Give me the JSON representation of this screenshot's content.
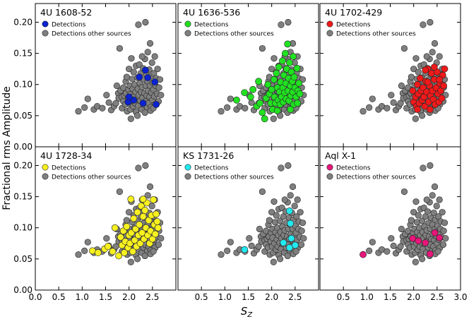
{
  "figure": {
    "ylabel": "Fractional rms Amplitude",
    "xlabel": "S",
    "xlabel_sub": "Z"
  },
  "legend": {
    "detections_label": "Detections",
    "others_label": "Detections other sources"
  },
  "colors": {
    "others": "#7f7f7f",
    "edge": "#222222"
  },
  "chart_data": {
    "type": "scatter",
    "layout": "2x3 grid, shared axes",
    "xlim": [
      0.0,
      3.0
    ],
    "ylim": [
      0.0,
      0.23
    ],
    "x_ticks": [
      "0.0",
      "0.5",
      "1.0",
      "1.5",
      "2.0",
      "2.5",
      "3.0"
    ],
    "x_tick_values": [
      0.0,
      0.5,
      1.0,
      1.5,
      2.0,
      2.5,
      3.0
    ],
    "y_ticks": [
      "0.00",
      "0.05",
      "0.10",
      "0.15",
      "0.20"
    ],
    "y_tick_values": [
      0.0,
      0.05,
      0.1,
      0.15,
      0.2
    ],
    "legend_position": "upper-left",
    "others_points": [
      [
        0.92,
        0.057
      ],
      [
        1.05,
        0.063
      ],
      [
        1.12,
        0.077
      ],
      [
        1.25,
        0.06
      ],
      [
        1.32,
        0.065
      ],
      [
        1.43,
        0.062
      ],
      [
        1.52,
        0.083
      ],
      [
        1.57,
        0.071
      ],
      [
        1.62,
        0.059
      ],
      [
        1.68,
        0.065
      ],
      [
        1.72,
        0.07
      ],
      [
        1.77,
        0.086
      ],
      [
        1.78,
        0.078
      ],
      [
        1.8,
        0.158
      ],
      [
        1.82,
        0.09
      ],
      [
        1.85,
        0.08
      ],
      [
        1.85,
        0.062
      ],
      [
        1.88,
        0.095
      ],
      [
        1.88,
        0.073
      ],
      [
        1.9,
        0.082
      ],
      [
        1.92,
        0.068
      ],
      [
        1.93,
        0.105
      ],
      [
        1.94,
        0.086
      ],
      [
        1.96,
        0.057
      ],
      [
        1.98,
        0.078
      ],
      [
        1.99,
        0.092
      ],
      [
        2.0,
        0.125
      ],
      [
        2.01,
        0.07
      ],
      [
        2.02,
        0.098
      ],
      [
        2.02,
        0.084
      ],
      [
        2.03,
        0.06
      ],
      [
        2.05,
        0.142
      ],
      [
        2.06,
        0.075
      ],
      [
        2.07,
        0.109
      ],
      [
        2.08,
        0.093
      ],
      [
        2.09,
        0.065
      ],
      [
        2.1,
        0.12
      ],
      [
        2.11,
        0.081
      ],
      [
        2.12,
        0.1
      ],
      [
        2.13,
        0.07
      ],
      [
        2.14,
        0.088
      ],
      [
        2.15,
        0.13
      ],
      [
        2.15,
        0.056
      ],
      [
        2.17,
        0.076
      ],
      [
        2.18,
        0.111
      ],
      [
        2.19,
        0.093
      ],
      [
        2.2,
        0.196
      ],
      [
        2.2,
        0.066
      ],
      [
        2.21,
        0.083
      ],
      [
        2.22,
        0.132
      ],
      [
        2.23,
        0.102
      ],
      [
        2.24,
        0.074
      ],
      [
        2.25,
        0.118
      ],
      [
        2.26,
        0.088
      ],
      [
        2.27,
        0.06
      ],
      [
        2.28,
        0.096
      ],
      [
        2.29,
        0.079
      ],
      [
        2.3,
        0.126
      ],
      [
        2.31,
        0.068
      ],
      [
        2.32,
        0.108
      ],
      [
        2.33,
        0.086
      ],
      [
        2.34,
        0.141
      ],
      [
        2.35,
        0.2
      ],
      [
        2.35,
        0.073
      ],
      [
        2.36,
        0.098
      ],
      [
        2.37,
        0.116
      ],
      [
        2.38,
        0.082
      ],
      [
        2.39,
        0.063
      ],
      [
        2.4,
        0.152
      ],
      [
        2.4,
        0.105
      ],
      [
        2.41,
        0.09
      ],
      [
        2.42,
        0.07
      ],
      [
        2.43,
        0.124
      ],
      [
        2.44,
        0.08
      ],
      [
        2.45,
        0.166
      ],
      [
        2.45,
        0.098
      ],
      [
        2.46,
        0.113
      ],
      [
        2.47,
        0.064
      ],
      [
        2.48,
        0.087
      ],
      [
        2.49,
        0.135
      ],
      [
        2.5,
        0.075
      ],
      [
        2.51,
        0.103
      ],
      [
        2.52,
        0.092
      ],
      [
        2.53,
        0.118
      ],
      [
        2.54,
        0.081
      ],
      [
        2.55,
        0.145
      ],
      [
        2.56,
        0.068
      ],
      [
        2.57,
        0.098
      ],
      [
        2.58,
        0.11
      ],
      [
        2.6,
        0.085
      ],
      [
        2.61,
        0.125
      ],
      [
        2.63,
        0.073
      ],
      [
        2.64,
        0.095
      ],
      [
        2.66,
        0.108
      ],
      [
        2.68,
        0.083
      ],
      [
        2.04,
        0.045
      ],
      [
        2.18,
        0.05
      ],
      [
        2.34,
        0.055
      ],
      [
        2.46,
        0.058
      ],
      [
        1.95,
        0.112
      ],
      [
        2.28,
        0.145
      ],
      [
        2.52,
        0.062
      ],
      [
        1.74,
        0.098
      ]
    ],
    "panels": [
      {
        "name": "4U 1608-52",
        "color": "#0a22d0",
        "points": [
          [
            2.22,
            0.112
          ],
          [
            2.35,
            0.123
          ],
          [
            2.4,
            0.111
          ],
          [
            2.55,
            0.104
          ],
          [
            2.1,
            0.075
          ],
          [
            2.3,
            0.07
          ],
          [
            1.98,
            0.072
          ],
          [
            2.58,
            0.068
          ],
          [
            2.0,
            0.08
          ]
        ]
      },
      {
        "name": "4U 1636-536",
        "color": "#22e022",
        "points": [
          [
            1.42,
            0.087
          ],
          [
            1.55,
            0.08
          ],
          [
            1.68,
            0.065
          ],
          [
            1.75,
            0.07
          ],
          [
            1.8,
            0.055
          ],
          [
            1.85,
            0.045
          ],
          [
            1.88,
            0.078
          ],
          [
            1.92,
            0.1
          ],
          [
            1.95,
            0.085
          ],
          [
            1.98,
            0.07
          ],
          [
            2.0,
            0.092
          ],
          [
            2.02,
            0.06
          ],
          [
            2.05,
            0.108
          ],
          [
            2.06,
            0.08
          ],
          [
            2.08,
            0.07
          ],
          [
            2.1,
            0.118
          ],
          [
            2.12,
            0.095
          ],
          [
            2.14,
            0.075
          ],
          [
            2.15,
            0.128
          ],
          [
            2.17,
            0.088
          ],
          [
            2.18,
            0.068
          ],
          [
            2.19,
            0.104
          ],
          [
            2.21,
            0.08
          ],
          [
            2.23,
            0.138
          ],
          [
            2.24,
            0.095
          ],
          [
            2.25,
            0.072
          ],
          [
            2.26,
            0.115
          ],
          [
            2.28,
            0.087
          ],
          [
            2.29,
            0.15
          ],
          [
            2.3,
            0.102
          ],
          [
            2.31,
            0.077
          ],
          [
            2.32,
            0.125
          ],
          [
            2.34,
            0.165
          ],
          [
            2.35,
            0.09
          ],
          [
            2.36,
            0.11
          ],
          [
            2.37,
            0.074
          ],
          [
            2.38,
            0.135
          ],
          [
            2.4,
            0.098
          ],
          [
            2.41,
            0.082
          ],
          [
            2.42,
            0.12
          ],
          [
            2.44,
            0.105
          ],
          [
            2.45,
            0.088
          ],
          [
            2.46,
            0.145
          ],
          [
            2.47,
            0.068
          ],
          [
            2.48,
            0.112
          ],
          [
            2.5,
            0.095
          ],
          [
            2.52,
            0.08
          ],
          [
            2.54,
            0.126
          ],
          [
            2.56,
            0.09
          ],
          [
            2.58,
            0.102
          ],
          [
            2.6,
            0.085
          ],
          [
            1.25,
            0.075
          ],
          [
            1.6,
            0.092
          ],
          [
            1.72,
            0.105
          ],
          [
            2.12,
            0.058
          ],
          [
            2.4,
            0.06
          ],
          [
            2.55,
            0.07
          ]
        ]
      },
      {
        "name": "4U 1702-429",
        "color": "#ee1a1a",
        "points": [
          [
            1.98,
            0.09
          ],
          [
            2.0,
            0.072
          ],
          [
            2.04,
            0.08
          ],
          [
            2.06,
            0.065
          ],
          [
            2.08,
            0.1
          ],
          [
            2.1,
            0.085
          ],
          [
            2.12,
            0.07
          ],
          [
            2.14,
            0.11
          ],
          [
            2.16,
            0.09
          ],
          [
            2.18,
            0.075
          ],
          [
            2.2,
            0.095
          ],
          [
            2.22,
            0.08
          ],
          [
            2.24,
            0.065
          ],
          [
            2.26,
            0.105
          ],
          [
            2.28,
            0.088
          ],
          [
            2.3,
            0.125
          ],
          [
            2.32,
            0.072
          ],
          [
            2.34,
            0.098
          ],
          [
            2.36,
            0.082
          ],
          [
            2.38,
            0.118
          ],
          [
            2.4,
            0.09
          ],
          [
            2.42,
            0.076
          ],
          [
            2.44,
            0.108
          ],
          [
            2.46,
            0.068
          ],
          [
            2.48,
            0.095
          ],
          [
            2.5,
            0.12
          ],
          [
            2.52,
            0.085
          ],
          [
            2.54,
            0.072
          ],
          [
            2.56,
            0.102
          ],
          [
            2.58,
            0.09
          ],
          [
            2.6,
            0.078
          ],
          [
            2.62,
            0.115
          ],
          [
            2.64,
            0.098
          ],
          [
            2.66,
            0.125
          ],
          [
            2.35,
            0.06
          ],
          [
            2.25,
            0.123
          ],
          [
            2.44,
            0.128
          ],
          [
            2.08,
            0.06
          ],
          [
            2.55,
            0.108
          ],
          [
            2.3,
            0.104
          ]
        ]
      },
      {
        "name": "4U 1728-34",
        "color": "#f7f020",
        "points": [
          [
            1.22,
            0.063
          ],
          [
            1.34,
            0.06
          ],
          [
            1.48,
            0.066
          ],
          [
            1.55,
            0.07
          ],
          [
            1.65,
            0.062
          ],
          [
            1.7,
            0.1
          ],
          [
            1.78,
            0.055
          ],
          [
            1.82,
            0.085
          ],
          [
            1.85,
            0.072
          ],
          [
            1.88,
            0.095
          ],
          [
            1.9,
            0.06
          ],
          [
            1.92,
            0.078
          ],
          [
            1.95,
            0.102
          ],
          [
            1.98,
            0.068
          ],
          [
            2.0,
            0.088
          ],
          [
            2.02,
            0.075
          ],
          [
            2.05,
            0.092
          ],
          [
            2.08,
            0.062
          ],
          [
            2.1,
            0.115
          ],
          [
            2.12,
            0.08
          ],
          [
            2.14,
            0.098
          ],
          [
            2.16,
            0.07
          ],
          [
            2.18,
            0.125
          ],
          [
            2.2,
            0.088
          ],
          [
            2.22,
            0.105
          ],
          [
            2.24,
            0.075
          ],
          [
            2.26,
            0.135
          ],
          [
            2.28,
            0.092
          ],
          [
            2.3,
            0.118
          ],
          [
            2.32,
            0.082
          ],
          [
            2.34,
            0.128
          ],
          [
            2.36,
            0.1
          ],
          [
            2.38,
            0.14
          ],
          [
            2.4,
            0.088
          ],
          [
            2.42,
            0.112
          ],
          [
            2.44,
            0.075
          ],
          [
            2.46,
            0.095
          ],
          [
            2.48,
            0.12
          ],
          [
            2.5,
            0.082
          ],
          [
            2.52,
            0.145
          ],
          [
            2.54,
            0.105
          ],
          [
            2.56,
            0.09
          ],
          [
            2.58,
            0.122
          ],
          [
            2.6,
            0.11
          ],
          [
            2.62,
            0.1
          ],
          [
            2.04,
            0.146
          ],
          [
            2.3,
            0.146
          ]
        ]
      },
      {
        "name": "KS 1731-26",
        "color": "#22e8f0",
        "points": [
          [
            2.38,
            0.127
          ],
          [
            2.4,
            0.107
          ],
          [
            2.42,
            0.083
          ],
          [
            2.25,
            0.076
          ],
          [
            2.5,
            0.072
          ],
          [
            2.38,
            0.068
          ],
          [
            1.42,
            0.065
          ]
        ]
      },
      {
        "name": "Aql X-1",
        "color": "#e8157a",
        "points": [
          [
            0.92,
            0.057
          ],
          [
            1.98,
            0.083
          ],
          [
            2.1,
            0.079
          ],
          [
            2.25,
            0.076
          ],
          [
            2.45,
            0.092
          ],
          [
            2.55,
            0.084
          ],
          [
            2.35,
            0.058
          ]
        ]
      }
    ]
  }
}
